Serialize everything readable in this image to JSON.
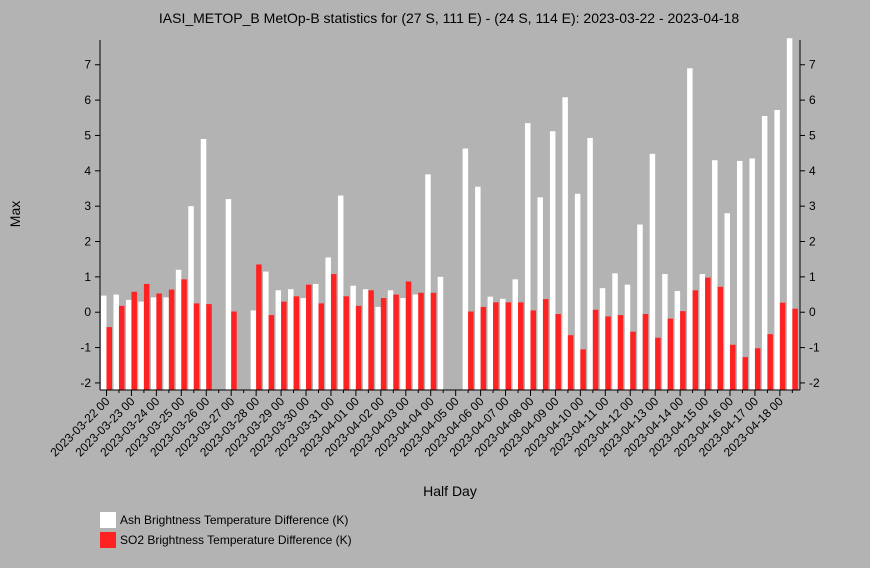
{
  "chart_data": {
    "type": "bar",
    "title": "IASI_METOP_B MetOp-B statistics for (27 S, 111 E) - (24 S, 114 E): 2023-03-22 - 2023-04-18",
    "xlabel": "Half Day",
    "ylabel": "Max",
    "ylim": [
      -2.2,
      7.7
    ],
    "yticks": [
      -2,
      -1,
      0,
      1,
      2,
      3,
      4,
      5,
      6,
      7
    ],
    "grid": false,
    "legend_position": "bottom-left",
    "x_tick_labels": [
      "2023-03-22 00",
      "2023-03-23 00",
      "2023-03-24 00",
      "2023-03-25 00",
      "2023-03-26 00",
      "2023-03-27 00",
      "2023-03-28 00",
      "2023-03-29 00",
      "2023-03-30 00",
      "2023-03-31 00",
      "2023-04-01 00",
      "2023-04-02 00",
      "2023-04-03 00",
      "2023-04-04 00",
      "2023-04-05 00",
      "2023-04-06 00",
      "2023-04-07 00",
      "2023-04-08 00",
      "2023-04-09 00",
      "2023-04-10 00",
      "2023-04-11 00",
      "2023-04-12 00",
      "2023-04-13 00",
      "2023-04-14 00",
      "2023-04-15 00",
      "2023-04-16 00",
      "2023-04-17 00",
      "2023-04-18 00"
    ],
    "series": [
      {
        "name": "Ash Brightness Temperature Difference (K)",
        "color": "#ffffff",
        "values": [
          0.47,
          0.5,
          0.35,
          0.3,
          0.42,
          0.42,
          1.2,
          3.0,
          4.9,
          null,
          3.2,
          null,
          0.05,
          1.15,
          0.62,
          0.65,
          0.4,
          0.8,
          1.55,
          3.3,
          0.75,
          0.65,
          0.15,
          0.62,
          0.4,
          0.5,
          3.9,
          1.0,
          null,
          4.63,
          3.55,
          0.44,
          0.38,
          0.93,
          5.35,
          3.25,
          5.12,
          6.08,
          3.35,
          4.93,
          0.68,
          1.1,
          0.78,
          2.48,
          4.48,
          1.08,
          0.6,
          6.9,
          1.08,
          4.3,
          2.8,
          4.28,
          4.35,
          5.55,
          5.72,
          7.75
        ]
      },
      {
        "name": "SO2 Brightness Temperature Difference (K)",
        "color": "#ff2222",
        "values": [
          -0.42,
          0.18,
          0.58,
          0.8,
          0.53,
          0.64,
          0.93,
          0.25,
          0.23,
          null,
          0.02,
          null,
          1.35,
          -0.08,
          0.3,
          0.45,
          0.78,
          0.25,
          1.08,
          0.45,
          0.18,
          0.62,
          0.4,
          0.5,
          0.87,
          0.55,
          0.55,
          null,
          null,
          0.02,
          0.15,
          0.28,
          0.28,
          0.28,
          0.05,
          0.37,
          -0.05,
          -0.65,
          -1.05,
          0.07,
          -0.12,
          -0.08,
          -0.55,
          -0.05,
          -0.72,
          -0.18,
          0.03,
          0.62,
          0.98,
          0.72,
          -0.92,
          -1.27,
          -1.02,
          -0.62,
          0.27,
          0.1
        ]
      }
    ]
  }
}
